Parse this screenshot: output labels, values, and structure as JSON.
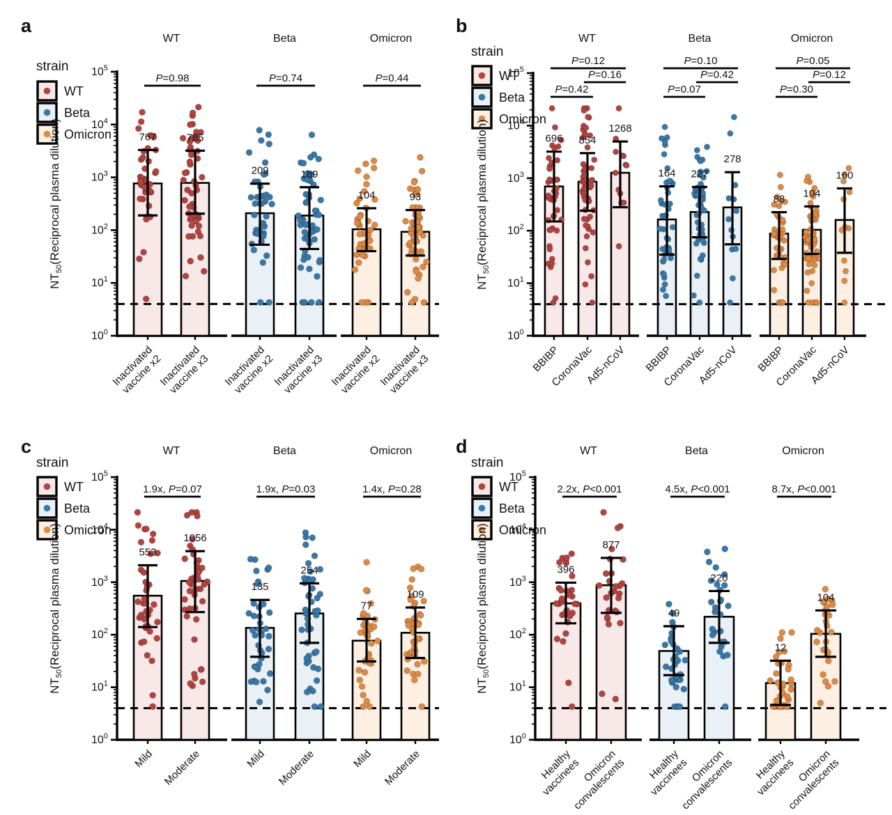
{
  "chart_data": {
    "type": "bar",
    "description": "Four-panel figure of NT50 neutralization titers (bar = geometric mean, whiskers = error range, dots = individual samples) against WT, Beta and Omicron strains",
    "y_axis": {
      "label_prefix": "NT",
      "label_sub": "50",
      "label_rest": "(Reciprocal plasma dilution)",
      "scale": "log10",
      "min_exp": 0,
      "max_exp": 5,
      "tick_base": "10",
      "detection_limit": 4
    },
    "legend": {
      "title": "strain",
      "items": [
        {
          "strain": "WT",
          "label": "WT"
        },
        {
          "strain": "Beta",
          "label": "Beta"
        },
        {
          "strain": "Omicron",
          "label": "Omicron"
        }
      ]
    },
    "strain_colors": {
      "WT": {
        "dot": "#b2433f",
        "fill": "#f8e9e8"
      },
      "Beta": {
        "dot": "#3878a8",
        "fill": "#e9f0f6"
      },
      "Omicron": {
        "dot": "#dd8a43",
        "fill": "#fdf0e3"
      }
    },
    "panels": [
      {
        "letter": "a",
        "groups": [
          {
            "strain": "WT",
            "title": "WT",
            "annotations": [
              {
                "text": "P=0.98",
                "from": 0,
                "to": 1,
                "level": 0
              }
            ],
            "bars": [
              {
                "label_lines": [
                  "Inactivated",
                  "vaccine x2"
                ],
                "mean": 767,
                "err_lo": 190,
                "err_hi": 3300,
                "n_points": 40
              },
              {
                "label_lines": [
                  "Inactivated",
                  "vaccine x3"
                ],
                "mean": 785,
                "err_lo": 205,
                "err_hi": 3200,
                "n_points": 55
              }
            ]
          },
          {
            "strain": "Beta",
            "title": "Beta",
            "annotations": [
              {
                "text": "P=0.74",
                "from": 0,
                "to": 1,
                "level": 0
              }
            ],
            "bars": [
              {
                "label_lines": [
                  "Inactivated",
                  "vaccine x2"
                ],
                "mean": 209,
                "err_lo": 53,
                "err_hi": 760,
                "n_points": 40
              },
              {
                "label_lines": [
                  "Inactivated",
                  "vaccine x3"
                ],
                "mean": 189,
                "err_lo": 44,
                "err_hi": 650,
                "n_points": 55
              }
            ]
          },
          {
            "strain": "Omicron",
            "title": "Omicron",
            "annotations": [
              {
                "text": "P=0.44",
                "from": 0,
                "to": 1,
                "level": 0
              }
            ],
            "bars": [
              {
                "label_lines": [
                  "Inactivated",
                  "vaccine x2"
                ],
                "mean": 104,
                "err_lo": 40,
                "err_hi": 260,
                "n_points": 40
              },
              {
                "label_lines": [
                  "Inactivated",
                  "vaccine x3"
                ],
                "mean": 93,
                "err_lo": 33,
                "err_hi": 240,
                "n_points": 55
              }
            ]
          }
        ]
      },
      {
        "letter": "b",
        "groups": [
          {
            "strain": "WT",
            "title": "WT",
            "annotations": [
              {
                "text": "P=0.42",
                "from": 0,
                "to": 1,
                "level": 0
              },
              {
                "text": "P=0.16",
                "from": 1,
                "to": 2,
                "level": 1
              },
              {
                "text": "P=0.12",
                "from": 0,
                "to": 2,
                "level": 2
              }
            ],
            "bars": [
              {
                "label_lines": [
                  "BBIBP"
                ],
                "mean": 696,
                "err_lo": 150,
                "err_hi": 3200,
                "n_points": 42
              },
              {
                "label_lines": [
                  "CoronaVac"
                ],
                "mean": 854,
                "err_lo": 240,
                "err_hi": 3000,
                "n_points": 55
              },
              {
                "label_lines": [
                  "Ad5-nCoV"
                ],
                "mean": 1268,
                "err_lo": 280,
                "err_hi": 5000,
                "n_points": 13
              }
            ]
          },
          {
            "strain": "Beta",
            "title": "Beta",
            "annotations": [
              {
                "text": "P=0.07",
                "from": 0,
                "to": 1,
                "level": 0
              },
              {
                "text": "P=0.42",
                "from": 1,
                "to": 2,
                "level": 1
              },
              {
                "text": "P=0.10",
                "from": 0,
                "to": 2,
                "level": 2
              }
            ],
            "bars": [
              {
                "label_lines": [
                  "BBIBP"
                ],
                "mean": 164,
                "err_lo": 35,
                "err_hi": 700,
                "n_points": 42
              },
              {
                "label_lines": [
                  "CoronaVac"
                ],
                "mean": 227,
                "err_lo": 75,
                "err_hi": 680,
                "n_points": 55
              },
              {
                "label_lines": [
                  "Ad5-nCoV"
                ],
                "mean": 278,
                "err_lo": 55,
                "err_hi": 1300,
                "n_points": 13
              }
            ]
          },
          {
            "strain": "Omicron",
            "title": "Omicron",
            "annotations": [
              {
                "text": "P=0.30",
                "from": 0,
                "to": 1,
                "level": 0
              },
              {
                "text": "P=0.12",
                "from": 1,
                "to": 2,
                "level": 1
              },
              {
                "text": "P=0.05",
                "from": 0,
                "to": 2,
                "level": 2
              }
            ],
            "bars": [
              {
                "label_lines": [
                  "BBIBP"
                ],
                "mean": 88,
                "err_lo": 29,
                "err_hi": 225,
                "n_points": 42
              },
              {
                "label_lines": [
                  "CoronaVac"
                ],
                "mean": 104,
                "err_lo": 36,
                "err_hi": 290,
                "n_points": 55
              },
              {
                "label_lines": [
                  "Ad5-nCoV"
                ],
                "mean": 160,
                "err_lo": 38,
                "err_hi": 640,
                "n_points": 12
              }
            ]
          }
        ]
      },
      {
        "letter": "c",
        "groups": [
          {
            "strain": "WT",
            "title": "WT",
            "annotations": [
              {
                "text": "1.9x, P=0.07",
                "from": 0,
                "to": 1,
                "level": 0
              }
            ],
            "bars": [
              {
                "label_lines": [
                  "Mild"
                ],
                "mean": 553,
                "err_lo": 140,
                "err_hi": 2100,
                "n_points": 38
              },
              {
                "label_lines": [
                  "Moderate"
                ],
                "mean": 1056,
                "err_lo": 270,
                "err_hi": 3900,
                "n_points": 45
              }
            ]
          },
          {
            "strain": "Beta",
            "title": "Beta",
            "annotations": [
              {
                "text": "1.9x, P=0.03",
                "from": 0,
                "to": 1,
                "level": 0
              }
            ],
            "bars": [
              {
                "label_lines": [
                  "Mild"
                ],
                "mean": 135,
                "err_lo": 38,
                "err_hi": 460,
                "n_points": 38
              },
              {
                "label_lines": [
                  "Moderate"
                ],
                "mean": 254,
                "err_lo": 70,
                "err_hi": 950,
                "n_points": 45
              }
            ]
          },
          {
            "strain": "Omicron",
            "title": "Omicron",
            "annotations": [
              {
                "text": "1.4x, P=0.28",
                "from": 0,
                "to": 1,
                "level": 0
              }
            ],
            "bars": [
              {
                "label_lines": [
                  "Mild"
                ],
                "mean": 77,
                "err_lo": 31,
                "err_hi": 200,
                "n_points": 38
              },
              {
                "label_lines": [
                  "Moderate"
                ],
                "mean": 109,
                "err_lo": 36,
                "err_hi": 330,
                "n_points": 45
              }
            ]
          }
        ]
      },
      {
        "letter": "d",
        "groups": [
          {
            "strain": "WT",
            "title": "WT",
            "annotations": [
              {
                "text": "2.2x, P<0.001",
                "from": 0,
                "to": 1,
                "level": 0
              }
            ],
            "bars": [
              {
                "label_lines": [
                  "Healthy",
                  "vaccinees"
                ],
                "mean": 396,
                "err_lo": 165,
                "err_hi": 980,
                "n_points": 33
              },
              {
                "label_lines": [
                  "Omicron",
                  "convalescents"
                ],
                "mean": 877,
                "err_lo": 260,
                "err_hi": 2900,
                "n_points": 27
              }
            ]
          },
          {
            "strain": "Beta",
            "title": "Beta",
            "annotations": [
              {
                "text": "4.5x, P<0.001",
                "from": 0,
                "to": 1,
                "level": 0
              }
            ],
            "bars": [
              {
                "label_lines": [
                  "Healthy",
                  "vaccinees"
                ],
                "mean": 49,
                "err_lo": 17,
                "err_hi": 145,
                "n_points": 33
              },
              {
                "label_lines": [
                  "Omicron",
                  "convalescents"
                ],
                "mean": 220,
                "err_lo": 70,
                "err_hi": 680,
                "n_points": 27
              }
            ]
          },
          {
            "strain": "Omicron",
            "title": "Omicron",
            "annotations": [
              {
                "text": "8.7x, P<0.001",
                "from": 0,
                "to": 1,
                "level": 0
              }
            ],
            "bars": [
              {
                "label_lines": [
                  "Healthy",
                  "vaccinees"
                ],
                "mean": 12,
                "err_lo": 4.6,
                "err_hi": 32,
                "n_points": 33
              },
              {
                "label_lines": [
                  "Omicron",
                  "convalescents"
                ],
                "mean": 104,
                "err_lo": 38,
                "err_hi": 290,
                "n_points": 27
              }
            ]
          }
        ]
      }
    ]
  }
}
